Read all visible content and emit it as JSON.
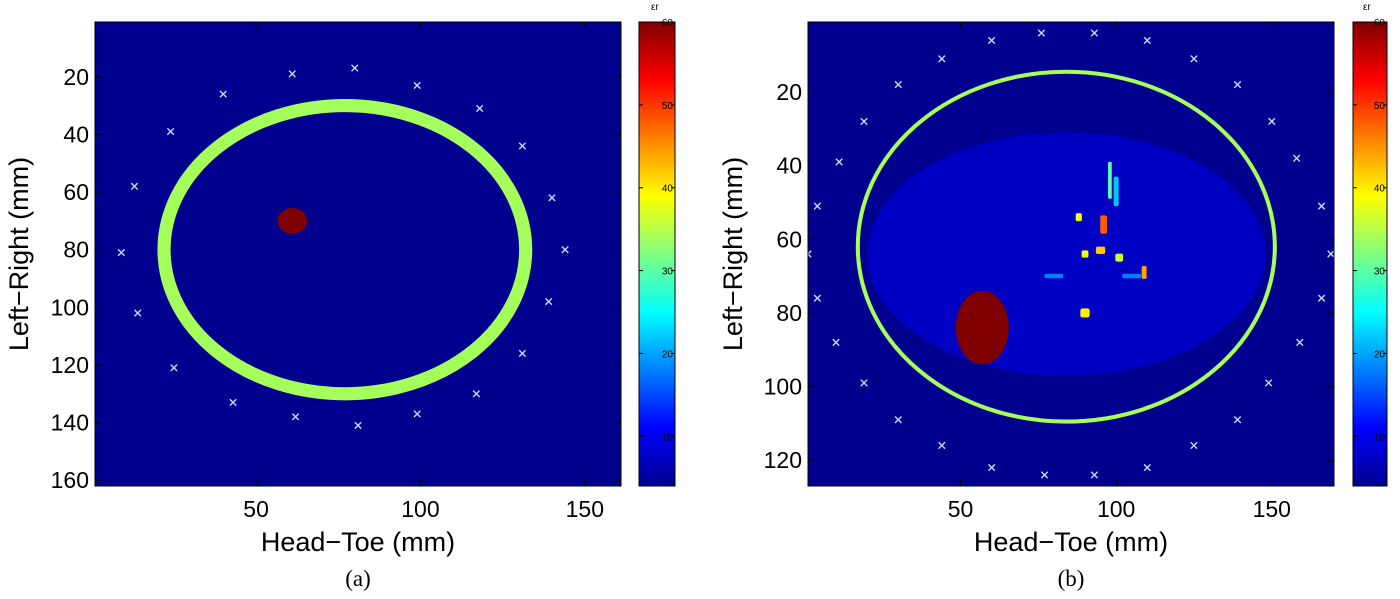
{
  "chart_data": [
    {
      "type": "heatmap",
      "caption": "(a)",
      "xlabel": "Head−Toe (mm)",
      "ylabel": "Left−Right (mm)",
      "xlim": [
        1,
        161
      ],
      "ylim": [
        162,
        1
      ],
      "xticks": [
        50,
        100,
        150
      ],
      "yticks": [
        20,
        40,
        60,
        80,
        100,
        120,
        140,
        160
      ],
      "background_value": 4,
      "skin_ellipse": {
        "cx": 77,
        "cy": 80,
        "rx": 55,
        "ry": 50,
        "thickness": 4,
        "value": 34
      },
      "tumor": {
        "cx": 61,
        "cy": 70,
        "r": 4.5,
        "value": 60
      },
      "antennas": [
        {
          "x": 61,
          "y": 19
        },
        {
          "x": 80,
          "y": 17
        },
        {
          "x": 99,
          "y": 23
        },
        {
          "x": 118,
          "y": 31
        },
        {
          "x": 131,
          "y": 44
        },
        {
          "x": 140,
          "y": 62
        },
        {
          "x": 144,
          "y": 80
        },
        {
          "x": 139,
          "y": 98
        },
        {
          "x": 131,
          "y": 116
        },
        {
          "x": 117,
          "y": 130
        },
        {
          "x": 99,
          "y": 137
        },
        {
          "x": 81,
          "y": 141
        },
        {
          "x": 62,
          "y": 138
        },
        {
          "x": 43,
          "y": 133
        },
        {
          "x": 25,
          "y": 121
        },
        {
          "x": 14,
          "y": 102
        },
        {
          "x": 9,
          "y": 81
        },
        {
          "x": 13,
          "y": 58
        },
        {
          "x": 24,
          "y": 39
        },
        {
          "x": 40,
          "y": 26
        }
      ],
      "colorbar": {
        "label": "εr",
        "min": 4,
        "max": 60,
        "ticks": [
          10,
          20,
          30,
          40,
          50,
          60
        ]
      }
    },
    {
      "type": "heatmap",
      "caption": "(b)",
      "xlabel": "Head−Toe (mm)",
      "ylabel": "Left−Right (mm)",
      "xlim": [
        1,
        170
      ],
      "ylim": [
        127,
        1
      ],
      "xticks": [
        50,
        100,
        150
      ],
      "yticks": [
        20,
        40,
        60,
        80,
        100,
        120
      ],
      "background_value": 4,
      "skin_ellipse": {
        "cx": 84,
        "cy": 62,
        "rx": 67,
        "ry": 47.5,
        "thickness": 1.3,
        "value": 34
      },
      "fatty_tissue": {
        "cx": 84,
        "cy": 64,
        "rx": 64,
        "ry": 33,
        "value": 8
      },
      "tumor": {
        "cx": 57,
        "cy": 84,
        "rx": 8.5,
        "ry": 10,
        "value": 60
      },
      "fibroglandular_spots": [
        {
          "x": 98,
          "y": 44,
          "w": 1.2,
          "h": 10,
          "value": 30
        },
        {
          "x": 96,
          "y": 56,
          "w": 2.2,
          "h": 5,
          "value": 48
        },
        {
          "x": 88,
          "y": 54,
          "w": 2,
          "h": 2.2,
          "value": 38
        },
        {
          "x": 95,
          "y": 63,
          "w": 3,
          "h": 2,
          "value": 42
        },
        {
          "x": 90,
          "y": 64,
          "w": 2.2,
          "h": 2,
          "value": 38
        },
        {
          "x": 101,
          "y": 65,
          "w": 2.5,
          "h": 2.2,
          "value": 36
        },
        {
          "x": 109,
          "y": 69,
          "w": 1.6,
          "h": 3.5,
          "value": 44
        },
        {
          "x": 90,
          "y": 80,
          "w": 3,
          "h": 2.5,
          "value": 40
        },
        {
          "x": 100,
          "y": 47,
          "w": 1.6,
          "h": 8,
          "value": 22
        },
        {
          "x": 105,
          "y": 70,
          "w": 6,
          "h": 1.2,
          "value": 18
        },
        {
          "x": 80,
          "y": 70,
          "w": 6,
          "h": 1.2,
          "value": 18
        }
      ],
      "antennas": [
        {
          "x": 60,
          "y": 6
        },
        {
          "x": 76,
          "y": 4
        },
        {
          "x": 93,
          "y": 4
        },
        {
          "x": 110,
          "y": 6
        },
        {
          "x": 125,
          "y": 11
        },
        {
          "x": 139,
          "y": 18
        },
        {
          "x": 150,
          "y": 28
        },
        {
          "x": 158,
          "y": 38
        },
        {
          "x": 166,
          "y": 51
        },
        {
          "x": 169,
          "y": 64
        },
        {
          "x": 166,
          "y": 76
        },
        {
          "x": 159,
          "y": 88
        },
        {
          "x": 149,
          "y": 99
        },
        {
          "x": 139,
          "y": 109
        },
        {
          "x": 125,
          "y": 116
        },
        {
          "x": 110,
          "y": 122
        },
        {
          "x": 93,
          "y": 124
        },
        {
          "x": 77,
          "y": 124
        },
        {
          "x": 60,
          "y": 122
        },
        {
          "x": 44,
          "y": 116
        },
        {
          "x": 30,
          "y": 109
        },
        {
          "x": 19,
          "y": 99
        },
        {
          "x": 10,
          "y": 88
        },
        {
          "x": 4,
          "y": 76
        },
        {
          "x": 1,
          "y": 64
        },
        {
          "x": 4,
          "y": 51
        },
        {
          "x": 11,
          "y": 39
        },
        {
          "x": 19,
          "y": 28
        },
        {
          "x": 30,
          "y": 18
        },
        {
          "x": 44,
          "y": 11
        }
      ],
      "colorbar": {
        "label": "εr",
        "min": 4,
        "max": 60,
        "ticks": [
          10,
          20,
          30,
          40,
          50,
          60
        ]
      }
    }
  ]
}
